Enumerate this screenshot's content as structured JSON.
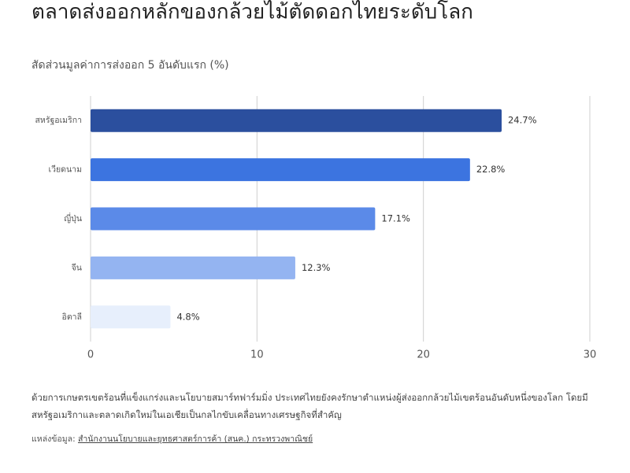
{
  "chart_data": {
    "type": "bar",
    "orientation": "horizontal",
    "title": "ตลาดส่งออกหลักของกล้วยไม้ตัดดอกไทยระดับโลก",
    "subtitle": "สัดส่วนมูลค่าการส่งออก 5 อันดับแรก (%)",
    "categories": [
      "สหรัฐอเมริกา",
      "เวียดนาม",
      "ญี่ปุ่น",
      "จีน",
      "อิตาลี"
    ],
    "values": [
      24.7,
      22.8,
      17.1,
      12.3,
      4.8
    ],
    "value_labels": [
      "24.7%",
      "22.8%",
      "17.1%",
      "12.3%",
      "4.8%"
    ],
    "colors": [
      "#2b4f9e",
      "#3c74e0",
      "#5b8ae8",
      "#94b4f1",
      "#e7effc"
    ],
    "xlim": [
      0,
      30
    ],
    "xticks": [
      0,
      10,
      20,
      30
    ],
    "grid": true
  },
  "footnote": "ด้วยการเกษตรเขตร้อนที่แข็งแกร่งและนโยบายสมาร์ทฟาร์มมิ่ง ประเทศไทยยังคงรักษาตำแหน่งผู้ส่งออกกล้วยไม้เขตร้อนอันดับหนึ่งของโลก โดยมีสหรัฐอเมริกาและตลาดเกิดใหม่ในเอเชียเป็นกลไกขับเคลื่อนทางเศรษฐกิจที่สำคัญ",
  "source": {
    "label": "แหล่งข้อมูล:",
    "link": "สำนักงานนโยบายและยุทธศาสตร์การค้า (สนค.) กระทรวงพาณิชย์"
  }
}
